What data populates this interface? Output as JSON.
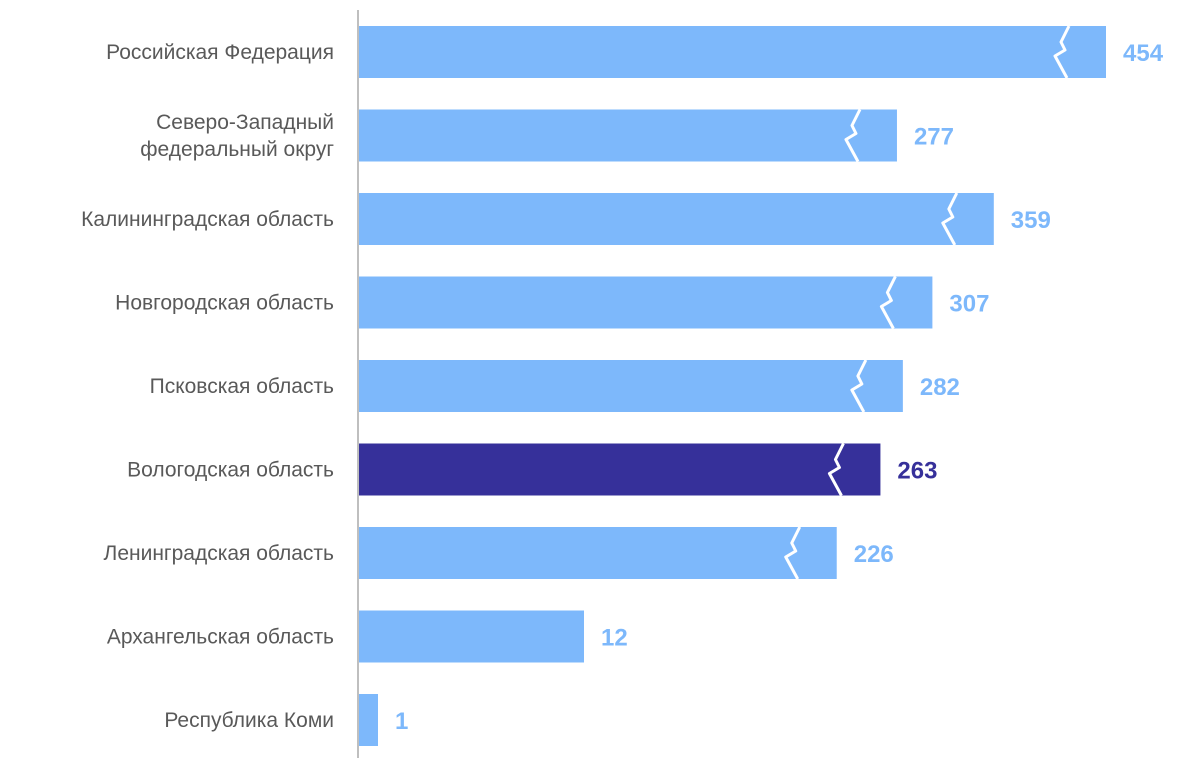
{
  "chart_data": {
    "type": "bar",
    "orientation": "horizontal",
    "axis_break": true,
    "categories": [
      [
        "Российская Федерация"
      ],
      [
        "Северо-Западный",
        "федеральный округ"
      ],
      [
        "Калининградская область"
      ],
      [
        "Новгородская область"
      ],
      [
        "Псковская область"
      ],
      [
        "Вологодская область"
      ],
      [
        "Ленинградская область"
      ],
      [
        "Архангельская область"
      ],
      [
        "Республика Коми"
      ]
    ],
    "values": [
      454,
      277,
      359,
      307,
      282,
      263,
      226,
      12,
      1
    ],
    "highlight_index": 5,
    "colors": {
      "bar": "#7db8fb",
      "bar_highlight": "#36309a",
      "label": "#7db8fb",
      "label_highlight": "#36309a",
      "category_text": "#595959",
      "axis": "#bfbfbf"
    },
    "title": "",
    "xlabel": "",
    "ylabel": "",
    "grid": false,
    "legend": "none"
  }
}
